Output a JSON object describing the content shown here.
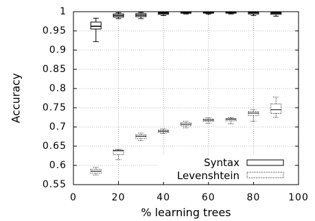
{
  "chart_data": {
    "type": "boxplot",
    "xlabel": "% learning trees",
    "ylabel": "Accuracy",
    "xlim": [
      0,
      100
    ],
    "ylim": [
      0.55,
      1.0
    ],
    "x_ticks": [
      "0",
      "20",
      "40",
      "60",
      "80",
      "100"
    ],
    "y_ticks": [
      "0.55",
      "0.6",
      "0.65",
      "0.7",
      "0.75",
      "0.8",
      "0.85",
      "0.9",
      "0.95",
      "1"
    ],
    "grid": true,
    "legend_position": "bottom-right",
    "series": [
      {
        "name": "Syntax",
        "style": "solid",
        "boxes": [
          {
            "x": 10,
            "min": 0.922,
            "q1": 0.955,
            "median": 0.962,
            "q3": 0.973,
            "max": 0.983
          },
          {
            "x": 20,
            "min": 0.982,
            "q1": 0.986,
            "median": 0.99,
            "q3": 0.994,
            "max": 0.997
          },
          {
            "x": 30,
            "min": 0.982,
            "q1": 0.987,
            "median": 0.991,
            "q3": 0.995,
            "max": 0.998
          },
          {
            "x": 40,
            "min": 0.99,
            "q1": 0.993,
            "median": 0.996,
            "q3": 0.998,
            "max": 1.0
          },
          {
            "x": 50,
            "min": 0.994,
            "q1": 0.996,
            "median": 0.997,
            "q3": 0.999,
            "max": 1.0
          },
          {
            "x": 60,
            "min": 0.994,
            "q1": 0.996,
            "median": 0.998,
            "q3": 0.999,
            "max": 1.0
          },
          {
            "x": 70,
            "min": 0.994,
            "q1": 0.996,
            "median": 0.998,
            "q3": 0.999,
            "max": 1.0
          },
          {
            "x": 80,
            "min": 0.99,
            "q1": 0.994,
            "median": 0.997,
            "q3": 0.999,
            "max": 1.0
          },
          {
            "x": 90,
            "min": 0.988,
            "q1": 0.993,
            "median": 0.996,
            "q3": 0.998,
            "max": 1.0
          }
        ]
      },
      {
        "name": "Levenshtein",
        "style": "dotted",
        "boxes": [
          {
            "x": 10,
            "min": 0.575,
            "q1": 0.58,
            "median": 0.585,
            "q3": 0.59,
            "max": 0.595
          },
          {
            "x": 20,
            "min": 0.615,
            "q1": 0.628,
            "median": 0.638,
            "q3": 0.64,
            "max": 0.642
          },
          {
            "x": 30,
            "min": 0.665,
            "q1": 0.67,
            "median": 0.676,
            "q3": 0.68,
            "max": 0.684
          },
          {
            "x": 40,
            "min": 0.683,
            "q1": 0.686,
            "median": 0.689,
            "q3": 0.692,
            "max": 0.695
          },
          {
            "x": 50,
            "min": 0.698,
            "q1": 0.703,
            "median": 0.707,
            "q3": 0.711,
            "max": 0.715
          },
          {
            "x": 60,
            "min": 0.71,
            "q1": 0.715,
            "median": 0.718,
            "q3": 0.721,
            "max": 0.724
          },
          {
            "x": 70,
            "min": 0.708,
            "q1": 0.716,
            "median": 0.72,
            "q3": 0.722,
            "max": 0.724
          },
          {
            "x": 80,
            "min": 0.715,
            "q1": 0.73,
            "median": 0.736,
            "q3": 0.74,
            "max": 0.745
          },
          {
            "x": 90,
            "min": 0.725,
            "q1": 0.735,
            "median": 0.745,
            "q3": 0.76,
            "max": 0.778
          }
        ]
      }
    ]
  }
}
